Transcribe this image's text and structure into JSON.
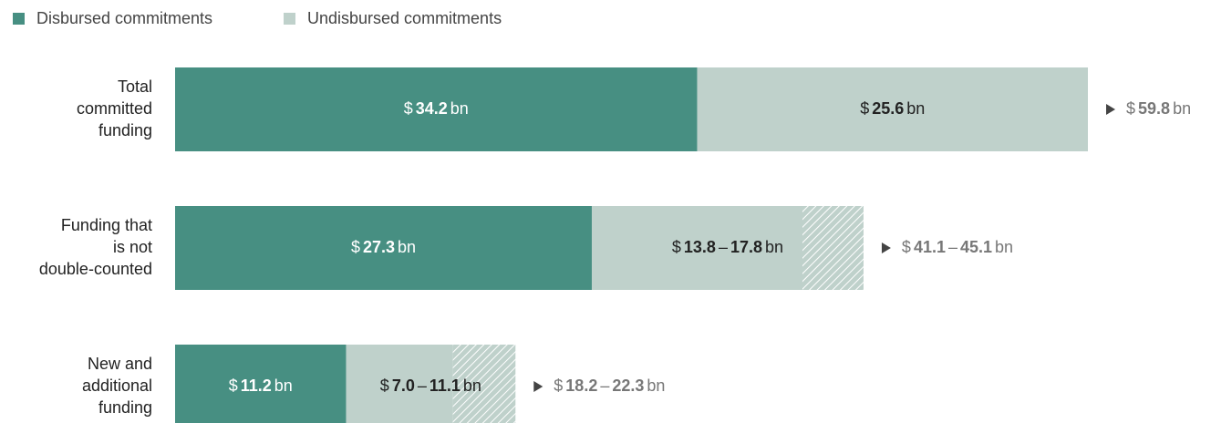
{
  "chart_data": {
    "type": "stacked-range-bar",
    "categories": [
      [
        "Total",
        "committed",
        "funding"
      ],
      [
        "Funding that",
        "is not",
        "double-counted"
      ],
      [
        "New and",
        "additional",
        "funding"
      ]
    ],
    "currency": "$",
    "unit": "bn",
    "range_separator": "–",
    "series": [
      {
        "name": "Disbursed commitments",
        "color": "#478f82",
        "values": [
          34.2,
          27.3,
          11.2
        ]
      },
      {
        "name": "Undisbursed commitments",
        "color": "#bfd1cb",
        "values": [
          25.6,
          13.8,
          7.0
        ],
        "value_labels": [
          "25.6",
          "13.8",
          "7.0"
        ],
        "range_high": [
          null,
          17.8,
          11.1
        ]
      }
    ],
    "total_low": [
      59.8,
      41.1,
      18.2
    ],
    "total_high": [
      null,
      45.1,
      22.3
    ]
  }
}
